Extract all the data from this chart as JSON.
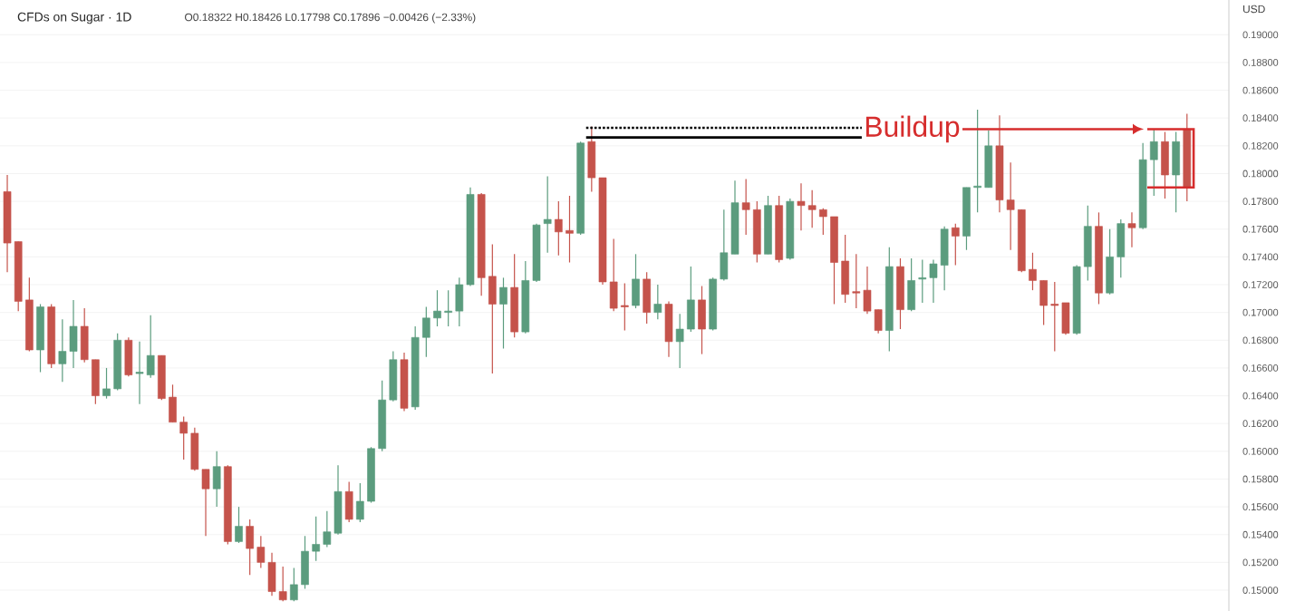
{
  "chart_data": {
    "type": "candlestick",
    "title": "CFDs on Sugar · 1D",
    "subtitle": "O0.18322 H0.18426 L0.17798 C0.17896 −0.00426 (−2.33%)",
    "ylabel": "USD",
    "categories": [
      null,
      null,
      null,
      null,
      null,
      null,
      null,
      null,
      null,
      null,
      null,
      null,
      null,
      null,
      null,
      null,
      null,
      null,
      null,
      null,
      null,
      null,
      null,
      null,
      null,
      null,
      null,
      null,
      null,
      null,
      null,
      null,
      null,
      null,
      null,
      null,
      null,
      null,
      null,
      null,
      null,
      null,
      null,
      null,
      null,
      null,
      null,
      null,
      null,
      null,
      null,
      null,
      null,
      null,
      null,
      null,
      null,
      null,
      null,
      null,
      null,
      null,
      null,
      null,
      null,
      null,
      null,
      null,
      null,
      null,
      null,
      null,
      null,
      null,
      null,
      null,
      null,
      null,
      null,
      null,
      null,
      null,
      null,
      null,
      null,
      null,
      null,
      null,
      null,
      null,
      null,
      null,
      null,
      null,
      null,
      null,
      null,
      null,
      null,
      null,
      null,
      null,
      null,
      null,
      null,
      null,
      null,
      null
    ],
    "ohlc": [
      [
        0.1787,
        0.1799,
        0.1729,
        0.175
      ],
      [
        0.1751,
        0.1751,
        0.1701,
        0.1708
      ],
      [
        0.1709,
        0.1725,
        0.1672,
        0.1673
      ],
      [
        0.1673,
        0.1706,
        0.1657,
        0.1704
      ],
      [
        0.1704,
        0.1706,
        0.166,
        0.1663
      ],
      [
        0.1663,
        0.1695,
        0.165,
        0.1672
      ],
      [
        0.1672,
        0.1709,
        0.166,
        0.169
      ],
      [
        0.169,
        0.1703,
        0.1664,
        0.1666
      ],
      [
        0.1666,
        0.1666,
        0.1634,
        0.164
      ],
      [
        0.164,
        0.166,
        0.1638,
        0.1645
      ],
      [
        0.1645,
        0.1685,
        0.1644,
        0.168
      ],
      [
        0.168,
        0.1682,
        0.1654,
        0.1655
      ],
      [
        0.1656,
        0.1679,
        0.1634,
        0.1657
      ],
      [
        0.1655,
        0.1698,
        0.1653,
        0.1669
      ],
      [
        0.1669,
        0.1669,
        0.1637,
        0.1638
      ],
      [
        0.1639,
        0.1648,
        0.1621,
        0.1621
      ],
      [
        0.1621,
        0.1625,
        0.1594,
        0.1613
      ],
      [
        0.1613,
        0.1617,
        0.1586,
        0.1587
      ],
      [
        0.1587,
        0.1587,
        0.1539,
        0.1573
      ],
      [
        0.1573,
        0.16,
        0.156,
        0.1589
      ],
      [
        0.1589,
        0.159,
        0.1533,
        0.1535
      ],
      [
        0.1535,
        0.156,
        0.1534,
        0.1546
      ],
      [
        0.1546,
        0.1551,
        0.1511,
        0.153
      ],
      [
        0.1531,
        0.1539,
        0.1516,
        0.152
      ],
      [
        0.152,
        0.1527,
        0.1496,
        0.1499
      ],
      [
        0.1499,
        0.1517,
        0.1492,
        0.1493
      ],
      [
        0.1493,
        0.1516,
        0.1492,
        0.1504
      ],
      [
        0.1504,
        0.1539,
        0.1501,
        0.1528
      ],
      [
        0.1528,
        0.1553,
        0.1521,
        0.1533
      ],
      [
        0.1533,
        0.1557,
        0.1531,
        0.1542
      ],
      [
        0.1541,
        0.159,
        0.154,
        0.1571
      ],
      [
        0.1571,
        0.1578,
        0.1549,
        0.1551
      ],
      [
        0.1551,
        0.1577,
        0.1549,
        0.1564
      ],
      [
        0.1564,
        0.1603,
        0.1563,
        0.1602
      ],
      [
        0.1602,
        0.1651,
        0.16,
        0.1637
      ],
      [
        0.1637,
        0.1672,
        0.1636,
        0.1666
      ],
      [
        0.1666,
        0.1671,
        0.1629,
        0.1631
      ],
      [
        0.1632,
        0.169,
        0.163,
        0.1682
      ],
      [
        0.1682,
        0.1704,
        0.1668,
        0.1696
      ],
      [
        0.1696,
        0.1716,
        0.169,
        0.1701
      ],
      [
        0.17,
        0.1716,
        0.169,
        0.1701
      ],
      [
        0.1701,
        0.1725,
        0.169,
        0.172
      ],
      [
        0.172,
        0.179,
        0.1719,
        0.1785
      ],
      [
        0.1785,
        0.1786,
        0.1712,
        0.1725
      ],
      [
        0.1726,
        0.1749,
        0.1656,
        0.1706
      ],
      [
        0.1706,
        0.1725,
        0.1674,
        0.1718
      ],
      [
        0.1718,
        0.1742,
        0.1682,
        0.1686
      ],
      [
        0.1686,
        0.1737,
        0.1685,
        0.1723
      ],
      [
        0.1723,
        0.1764,
        0.1722,
        0.1763
      ],
      [
        0.1764,
        0.1798,
        0.1743,
        0.1767
      ],
      [
        0.1767,
        0.178,
        0.1741,
        0.1758
      ],
      [
        0.1759,
        0.1784,
        0.1736,
        0.1757
      ],
      [
        0.1757,
        0.1823,
        0.1756,
        0.1822
      ],
      [
        0.1823,
        0.1834,
        0.1787,
        0.1797
      ],
      [
        0.1797,
        0.1797,
        0.172,
        0.1722
      ],
      [
        0.1722,
        0.1753,
        0.1701,
        0.1703
      ],
      [
        0.1705,
        0.1721,
        0.1687,
        0.1704
      ],
      [
        0.1705,
        0.1742,
        0.1703,
        0.1724
      ],
      [
        0.1724,
        0.1729,
        0.1692,
        0.17
      ],
      [
        0.17,
        0.172,
        0.1695,
        0.1706
      ],
      [
        0.1706,
        0.1708,
        0.1668,
        0.1679
      ],
      [
        0.1679,
        0.1699,
        0.166,
        0.1688
      ],
      [
        0.1688,
        0.1733,
        0.1686,
        0.1709
      ],
      [
        0.1709,
        0.1719,
        0.167,
        0.1688
      ],
      [
        0.1688,
        0.1725,
        0.1687,
        0.1724
      ],
      [
        0.1724,
        0.1774,
        0.1723,
        0.1743
      ],
      [
        0.1742,
        0.1795,
        0.1742,
        0.1779
      ],
      [
        0.1779,
        0.1796,
        0.1756,
        0.1774
      ],
      [
        0.1774,
        0.178,
        0.1736,
        0.1742
      ],
      [
        0.1742,
        0.1784,
        0.1742,
        0.1777
      ],
      [
        0.1777,
        0.1784,
        0.1736,
        0.1738
      ],
      [
        0.1739,
        0.1782,
        0.1738,
        0.178
      ],
      [
        0.178,
        0.1793,
        0.1759,
        0.1777
      ],
      [
        0.1777,
        0.1788,
        0.1761,
        0.1774
      ],
      [
        0.1774,
        0.1775,
        0.1756,
        0.1769
      ],
      [
        0.1769,
        0.1769,
        0.1706,
        0.1736
      ],
      [
        0.1737,
        0.1756,
        0.1707,
        0.1713
      ],
      [
        0.1715,
        0.1742,
        0.1703,
        0.1714
      ],
      [
        0.1716,
        0.1733,
        0.1699,
        0.1701
      ],
      [
        0.1702,
        0.1702,
        0.1685,
        0.1687
      ],
      [
        0.1687,
        0.1747,
        0.1672,
        0.1733
      ],
      [
        0.1733,
        0.1739,
        0.1688,
        0.1702
      ],
      [
        0.1702,
        0.1739,
        0.1701,
        0.1723
      ],
      [
        0.1724,
        0.1738,
        0.1707,
        0.1725
      ],
      [
        0.1725,
        0.1738,
        0.1707,
        0.1735
      ],
      [
        0.1734,
        0.1762,
        0.1716,
        0.176
      ],
      [
        0.1761,
        0.1764,
        0.1734,
        0.1755
      ],
      [
        0.1755,
        0.179,
        0.1745,
        0.179
      ],
      [
        0.179,
        0.1846,
        0.1772,
        0.1791
      ],
      [
        0.179,
        0.1831,
        0.179,
        0.182
      ],
      [
        0.182,
        0.1842,
        0.1772,
        0.1781
      ],
      [
        0.1781,
        0.1808,
        0.1745,
        0.1774
      ],
      [
        0.1774,
        0.1774,
        0.1729,
        0.173
      ],
      [
        0.1731,
        0.1743,
        0.1716,
        0.1723
      ],
      [
        0.1723,
        0.1723,
        0.1691,
        0.1705
      ],
      [
        0.1706,
        0.1722,
        0.1672,
        0.1705
      ],
      [
        0.1707,
        0.1707,
        0.1684,
        0.1685
      ],
      [
        0.1685,
        0.1734,
        0.1684,
        0.1733
      ],
      [
        0.1733,
        0.1777,
        0.1723,
        0.1762
      ],
      [
        0.1762,
        0.1772,
        0.1706,
        0.1714
      ],
      [
        0.1714,
        0.176,
        0.1713,
        0.174
      ],
      [
        0.174,
        0.1767,
        0.1725,
        0.1764
      ],
      [
        0.1764,
        0.1772,
        0.1747,
        0.1761
      ],
      [
        0.1761,
        0.1822,
        0.176,
        0.181
      ],
      [
        0.181,
        0.1832,
        0.1784,
        0.1823
      ],
      [
        0.1823,
        0.183,
        0.1782,
        0.1799
      ],
      [
        0.1799,
        0.183,
        0.1772,
        0.1823
      ],
      [
        0.1832,
        0.1843,
        0.178,
        0.179
      ]
    ],
    "colors": [
      "#c5534b",
      "#c5534b",
      "#c5534b",
      "#5b9c7e",
      "#c5534b",
      "#5b9c7e",
      "#5b9c7e",
      "#c5534b",
      "#c5534b",
      "#5b9c7e",
      "#5b9c7e",
      "#c5534b",
      "#5b9c7e",
      "#5b9c7e",
      "#c5534b",
      "#c5534b",
      "#c5534b",
      "#c5534b",
      "#c5534b",
      "#5b9c7e",
      "#c5534b",
      "#5b9c7e",
      "#c5534b",
      "#c5534b",
      "#c5534b",
      "#c5534b",
      "#5b9c7e",
      "#5b9c7e",
      "#5b9c7e",
      "#5b9c7e",
      "#5b9c7e",
      "#c5534b",
      "#5b9c7e",
      "#5b9c7e",
      "#5b9c7e",
      "#5b9c7e",
      "#c5534b",
      "#5b9c7e",
      "#5b9c7e",
      "#5b9c7e",
      "#5b9c7e",
      "#5b9c7e",
      "#5b9c7e",
      "#c5534b",
      "#c5534b",
      "#5b9c7e",
      "#c5534b",
      "#5b9c7e",
      "#5b9c7e",
      "#5b9c7e",
      "#c5534b",
      "#c5534b",
      "#5b9c7e",
      "#c5534b",
      "#c5534b",
      "#c5534b",
      "#c5534b",
      "#5b9c7e",
      "#c5534b",
      "#5b9c7e",
      "#c5534b",
      "#5b9c7e",
      "#5b9c7e",
      "#c5534b",
      "#5b9c7e",
      "#5b9c7e",
      "#5b9c7e",
      "#c5534b",
      "#c5534b",
      "#5b9c7e",
      "#c5534b",
      "#5b9c7e",
      "#c5534b",
      "#c5534b",
      "#c5534b",
      "#c5534b",
      "#c5534b",
      "#c5534b",
      "#c5534b",
      "#c5534b",
      "#5b9c7e",
      "#c5534b",
      "#5b9c7e",
      "#5b9c7e",
      "#5b9c7e",
      "#5b9c7e",
      "#c5534b",
      "#5b9c7e",
      "#5b9c7e",
      "#5b9c7e",
      "#c5534b",
      "#c5534b",
      "#c5534b",
      "#c5534b",
      "#c5534b",
      "#c5534b",
      "#c5534b",
      "#5b9c7e",
      "#5b9c7e",
      "#c5534b",
      "#5b9c7e",
      "#5b9c7e",
      "#c5534b",
      "#5b9c7e",
      "#5b9c7e",
      "#c5534b",
      "#5b9c7e",
      "#c5534b"
    ],
    "ylim": [
      0.1485,
      0.1925
    ],
    "yticks": [
      {
        "value": 0.15,
        "label": "0.15000"
      },
      {
        "value": 0.152,
        "label": "0.15200"
      },
      {
        "value": 0.154,
        "label": "0.15400"
      },
      {
        "value": 0.156,
        "label": "0.15600"
      },
      {
        "value": 0.158,
        "label": "0.15800"
      },
      {
        "value": 0.16,
        "label": "0.16000"
      },
      {
        "value": 0.162,
        "label": "0.16200"
      },
      {
        "value": 0.164,
        "label": "0.16400"
      },
      {
        "value": 0.166,
        "label": "0.16600"
      },
      {
        "value": 0.168,
        "label": "0.16800"
      },
      {
        "value": 0.17,
        "label": "0.17000"
      },
      {
        "value": 0.172,
        "label": "0.17200"
      },
      {
        "value": 0.174,
        "label": "0.17400"
      },
      {
        "value": 0.176,
        "label": "0.17600"
      },
      {
        "value": 0.178,
        "label": "0.17800"
      },
      {
        "value": 0.18,
        "label": "0.18000"
      },
      {
        "value": 0.182,
        "label": "0.18200"
      },
      {
        "value": 0.184,
        "label": "0.18400"
      },
      {
        "value": 0.186,
        "label": "0.18600"
      },
      {
        "value": 0.188,
        "label": "0.18800"
      },
      {
        "value": 0.19,
        "label": "0.19000"
      }
    ],
    "grid": "y",
    "ref_lines": [
      {
        "axis": "y",
        "value": 0.1833,
        "color": "#000000",
        "line_style": "dotted"
      },
      {
        "axis": "y",
        "value": 0.1826,
        "color": "#000000",
        "line_style": "solid"
      }
    ],
    "annotations": [
      "Buildup"
    ]
  }
}
